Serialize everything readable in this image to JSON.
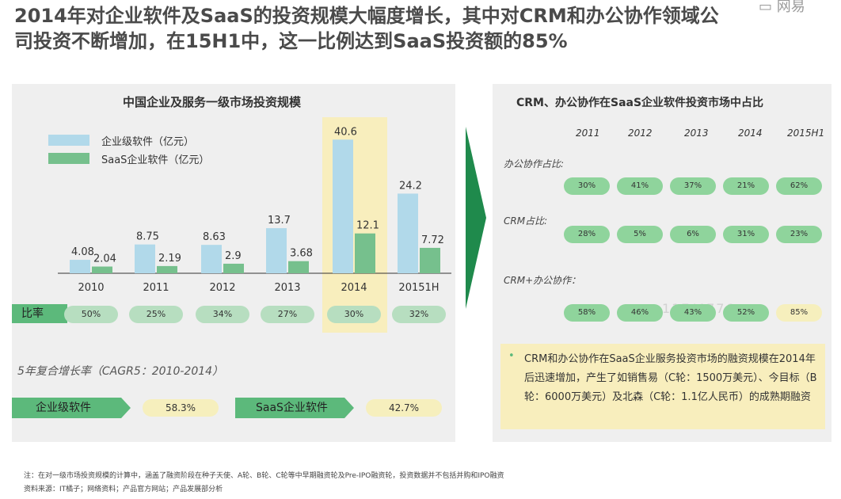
{
  "title": "2014年对企业软件及SaaS的投资规模大幅度增长，其中对CRM和办公协作领域公司投资不断增加，在15H1中，这一比例达到SaaS投资额的85%",
  "logo_text": "网易",
  "left_panel": {
    "title": "中国企业及服务一级市场投资规模",
    "ratio_label": "比率",
    "cagr_title": "5年复合增长率（CAGR5：2010-2014）",
    "cagr": [
      {
        "label": "企业级软件",
        "value": "58.3%"
      },
      {
        "label": "SaaS企业软件",
        "value": "42.7%"
      }
    ]
  },
  "chart_data": {
    "type": "bar",
    "categories": [
      "2010",
      "2011",
      "2012",
      "2013",
      "2014",
      "20151H"
    ],
    "series": [
      {
        "name": "企业级软件（亿元）",
        "values": [
          4.08,
          8.75,
          8.63,
          13.7,
          40.6,
          24.2
        ],
        "labels": [
          "4.08",
          "8.75",
          "8.63",
          "13.7",
          "40.6",
          "24.2"
        ],
        "color": "#b1d9ea"
      },
      {
        "name": "SaaS企业软件（亿元）",
        "values": [
          2.04,
          2.19,
          2.9,
          3.68,
          12.1,
          7.72
        ],
        "labels": [
          "2.04",
          "2.19",
          "2.9",
          "3.68",
          "12.1",
          "7.72"
        ],
        "color": "#76c08d"
      }
    ],
    "ratio": [
      "50%",
      "25%",
      "34%",
      "27%",
      "30%",
      "32%"
    ],
    "highlight_category": "2014",
    "ylim": [
      0,
      45
    ]
  },
  "right_panel": {
    "title": "CRM、办公协作在SaaS企业软件投资市场中占比",
    "years": [
      "2011",
      "2012",
      "2013",
      "2014",
      "2015H1"
    ],
    "rows": [
      {
        "label": "办公协作占比:",
        "values": [
          "30%",
          "41%",
          "37%",
          "21%",
          "62%"
        ]
      },
      {
        "label": "CRM占比:",
        "values": [
          "28%",
          "5%",
          "6%",
          "31%",
          "23%"
        ]
      },
      {
        "label": "CRM+办公协作：",
        "values": [
          "58%",
          "46%",
          "43%",
          "52%",
          "85%"
        ]
      }
    ],
    "note": "CRM和办公协作在SaaS企业服务投资市场的融资规模在2014年后迅速增加，产生了如销售易（C轮：1500万美元）、今目标（B轮：6000万美元）及北森（C轮：1.1亿人民币）的成熟期融资",
    "watermark": "117/4776"
  },
  "footnotes": [
    "注：在对一级市场投资规模的计算中，涵盖了融资阶段在种子天使、A轮、B轮、C轮等中早期融资轮及Pre-IPO融资轮，投资数据并不包括并购和IPO融资",
    "资料来源：IT橘子；网络资料；产品官方网站；产品发展部分析"
  ],
  "colors": {
    "green": "#5cb97b",
    "light_blue": "#b1d9ea",
    "yellow": "#f8eebd",
    "dark_arrow": "#1f8a4c"
  }
}
